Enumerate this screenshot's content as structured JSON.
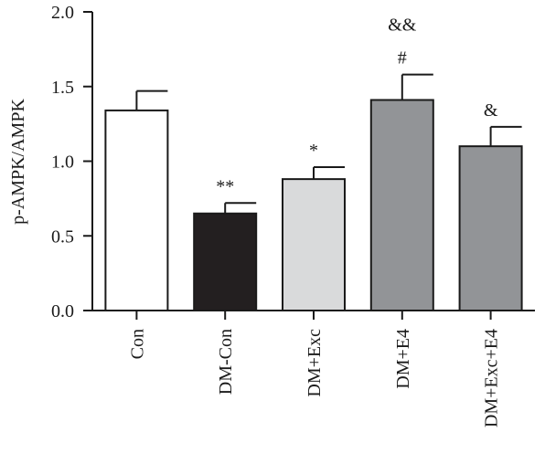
{
  "chart_data": {
    "type": "bar",
    "title": "",
    "xlabel": "",
    "ylabel": "p-AMPK/AMPK",
    "ylim": [
      0,
      2.0
    ],
    "yticks": [
      "0.0",
      "0.5",
      "1.0",
      "1.5",
      "2.0"
    ],
    "ytick_values": [
      0,
      0.5,
      1.0,
      1.5,
      2.0
    ],
    "grid": false,
    "categories": [
      "Con",
      "DM-Con",
      "DM+Exc",
      "DM+E4",
      "DM+Exc+E4"
    ],
    "values": [
      1.34,
      0.65,
      0.88,
      1.41,
      1.1
    ],
    "errors": [
      0.13,
      0.07,
      0.08,
      0.17,
      0.13
    ],
    "colors": [
      "#ffffff",
      "#231f20",
      "#d9dadb",
      "#929497",
      "#929497"
    ],
    "annotations": [
      [],
      [
        "**"
      ],
      [
        "*"
      ],
      [
        "#",
        "&&"
      ],
      [
        "&"
      ]
    ]
  }
}
